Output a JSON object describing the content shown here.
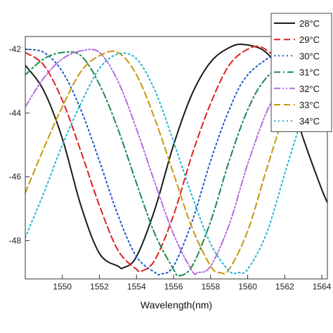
{
  "chart_data": {
    "type": "line",
    "title": "",
    "xlabel": "Wavelength(nm)",
    "ylabel": "",
    "xlim": [
      1548,
      1564.3
    ],
    "ylim": [
      -49.2,
      -41.6
    ],
    "xticks": [
      1550,
      1552,
      1554,
      1556,
      1558,
      1560,
      1562,
      1564
    ],
    "xtick_labels": [
      "1550",
      "1552",
      "1554",
      "1556",
      "1558",
      "1560",
      "1562",
      "1564"
    ],
    "yticks": [
      -42,
      -44,
      -46,
      -48
    ],
    "ytick_labels": [
      "-42",
      "-44",
      "-46",
      "-48"
    ],
    "grid": false,
    "legend_position": "top-right",
    "series": [
      {
        "name": "28°C",
        "color": "#1a1a1a",
        "dash": "solid",
        "x": [
          1548,
          1549,
          1550,
          1551,
          1552,
          1553,
          1553.3,
          1554,
          1555,
          1556,
          1557,
          1558,
          1559,
          1559.8,
          1561,
          1562,
          1563,
          1564,
          1564.3
        ],
        "y": [
          -42.5,
          -43.3,
          -44.8,
          -46.9,
          -48.4,
          -48.8,
          -48.85,
          -48.5,
          -47.0,
          -45.0,
          -43.4,
          -42.4,
          -41.95,
          -41.85,
          -42.1,
          -43.0,
          -44.8,
          -46.4,
          -46.8
        ]
      },
      {
        "name": "29°C",
        "color": "#e02020",
        "dash": "dashed",
        "x": [
          1548,
          1549,
          1550,
          1551,
          1552,
          1553,
          1554,
          1554.3,
          1555,
          1556,
          1557,
          1558,
          1559,
          1560,
          1560.8,
          1562
        ],
        "y": [
          -42.1,
          -42.5,
          -43.6,
          -45.2,
          -46.9,
          -48.3,
          -48.9,
          -48.95,
          -48.6,
          -47.2,
          -45.3,
          -43.7,
          -42.5,
          -42.0,
          -41.95,
          -42.5
        ]
      },
      {
        "name": "30°C",
        "color": "#1f57c8",
        "dash": "dotted",
        "x": [
          1548,
          1549,
          1550,
          1551,
          1552,
          1553,
          1554,
          1555,
          1555.3,
          1556,
          1557,
          1558,
          1559,
          1560,
          1561.8
        ],
        "y": [
          -42.0,
          -42.1,
          -42.7,
          -43.9,
          -45.5,
          -47.2,
          -48.5,
          -49.0,
          -49.05,
          -48.8,
          -47.4,
          -45.5,
          -43.9,
          -42.8,
          -42.0
        ]
      },
      {
        "name": "31°C",
        "color": "#1b8a4a",
        "dash": "dashdot",
        "x": [
          1548,
          1549,
          1550,
          1551,
          1552,
          1553,
          1554,
          1555,
          1556,
          1556.3,
          1557,
          1558,
          1559,
          1560,
          1561,
          1562.8
        ],
        "y": [
          -42.8,
          -42.3,
          -42.1,
          -42.2,
          -43.1,
          -44.5,
          -46.2,
          -47.8,
          -48.9,
          -49.1,
          -48.8,
          -47.4,
          -45.5,
          -43.9,
          -42.9,
          -42.0
        ]
      },
      {
        "name": "32°C",
        "color": "#b56be0",
        "dash": "dashdotdot",
        "x": [
          1548,
          1549,
          1550,
          1551,
          1552,
          1553,
          1554,
          1555,
          1556,
          1557,
          1557.3,
          1558,
          1559,
          1560,
          1561,
          1562,
          1563
        ],
        "y": [
          -43.8,
          -42.9,
          -42.3,
          -42.05,
          -42.1,
          -43.0,
          -44.5,
          -46.2,
          -47.8,
          -48.95,
          -49.0,
          -48.8,
          -47.5,
          -45.6,
          -44.0,
          -42.9,
          -42.3
        ]
      },
      {
        "name": "33°C",
        "color": "#c8960a",
        "dash": "dashed",
        "x": [
          1548,
          1549,
          1550,
          1551,
          1552,
          1553,
          1554,
          1555,
          1556,
          1557,
          1558,
          1558.5,
          1559,
          1560,
          1561,
          1562,
          1563
        ],
        "y": [
          -46.5,
          -45.1,
          -43.8,
          -42.7,
          -42.2,
          -42.1,
          -42.8,
          -44.2,
          -45.9,
          -47.6,
          -48.8,
          -49.0,
          -48.9,
          -47.7,
          -45.8,
          -44.0,
          -42.6
        ]
      },
      {
        "name": "34°C",
        "color": "#22b6d4",
        "dash": "dotted",
        "x": [
          1548,
          1549,
          1550,
          1551,
          1552,
          1553,
          1554,
          1555,
          1556,
          1557,
          1558,
          1559,
          1559.5,
          1560,
          1561,
          1562,
          1563
        ],
        "y": [
          -47.9,
          -46.5,
          -45.0,
          -43.7,
          -42.6,
          -42.15,
          -42.3,
          -43.3,
          -44.9,
          -46.6,
          -48.1,
          -48.95,
          -49.0,
          -48.9,
          -47.8,
          -45.9,
          -44.0
        ]
      }
    ]
  }
}
